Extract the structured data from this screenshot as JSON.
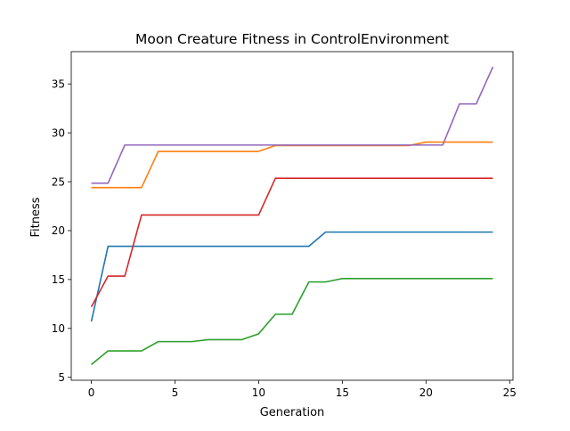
{
  "chart_data": {
    "type": "line",
    "title": "Moon Creature Fitness in ControlEnvironment",
    "xlabel": "Generation",
    "ylabel": "Fitness",
    "xlim": [
      -1.2,
      25.2
    ],
    "ylim": [
      4.7,
      38.3
    ],
    "xticks": [
      0,
      5,
      10,
      15,
      20,
      25
    ],
    "yticks": [
      5,
      10,
      15,
      20,
      25,
      30,
      35
    ],
    "grid": false,
    "legend": "none",
    "x": [
      0,
      1,
      2,
      3,
      4,
      5,
      6,
      7,
      8,
      9,
      10,
      11,
      12,
      13,
      14,
      15,
      16,
      17,
      18,
      19,
      20,
      21,
      22,
      23,
      24
    ],
    "series": [
      {
        "color": "#1f77b4",
        "values": [
          10.7,
          18.4,
          18.4,
          18.4,
          18.4,
          18.4,
          18.4,
          18.4,
          18.4,
          18.4,
          18.4,
          18.4,
          18.4,
          18.4,
          19.85,
          19.85,
          19.85,
          19.85,
          19.85,
          19.85,
          19.85,
          19.85,
          19.85,
          19.85,
          19.85
        ]
      },
      {
        "color": "#ff7f0e",
        "values": [
          24.4,
          24.4,
          24.4,
          24.4,
          28.1,
          28.1,
          28.1,
          28.1,
          28.1,
          28.1,
          28.1,
          28.7,
          28.7,
          28.7,
          28.7,
          28.7,
          28.7,
          28.7,
          28.7,
          28.7,
          29.05,
          29.05,
          29.05,
          29.05,
          29.05
        ]
      },
      {
        "color": "#2ca02c",
        "values": [
          6.3,
          7.7,
          7.7,
          7.7,
          8.65,
          8.65,
          8.65,
          8.85,
          8.85,
          8.85,
          9.45,
          11.45,
          11.45,
          14.75,
          14.75,
          15.1,
          15.1,
          15.1,
          15.1,
          15.1,
          15.1,
          15.1,
          15.1,
          15.1,
          15.1
        ]
      },
      {
        "color": "#d62728",
        "values": [
          12.2,
          15.35,
          15.35,
          21.6,
          21.6,
          21.6,
          21.6,
          21.6,
          21.6,
          21.6,
          21.6,
          25.35,
          25.35,
          25.35,
          25.35,
          25.35,
          25.35,
          25.35,
          25.35,
          25.35,
          25.35,
          25.35,
          25.35,
          25.35,
          25.35
        ]
      },
      {
        "color": "#9467bd",
        "values": [
          24.85,
          24.85,
          28.75,
          28.75,
          28.75,
          28.75,
          28.75,
          28.75,
          28.75,
          28.75,
          28.75,
          28.75,
          28.75,
          28.75,
          28.75,
          28.75,
          28.75,
          28.75,
          28.75,
          28.75,
          28.75,
          28.75,
          32.95,
          32.95,
          36.75
        ]
      }
    ]
  }
}
